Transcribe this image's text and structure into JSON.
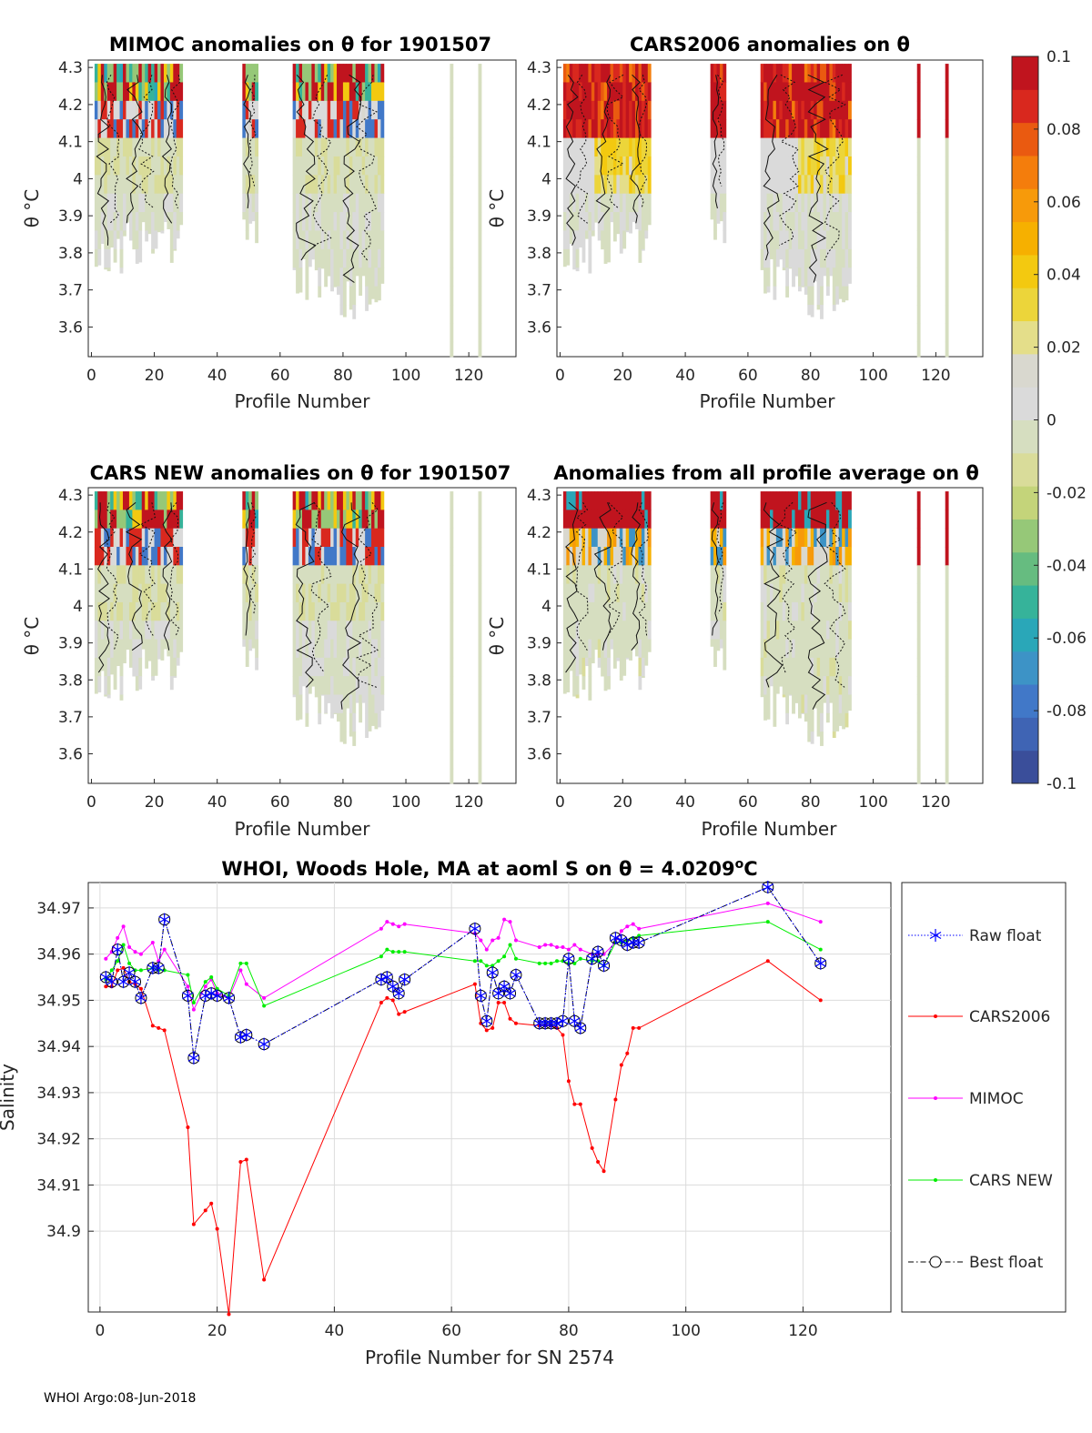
{
  "footer": "WHOI Argo:08-Jun-2018",
  "colorbar": {
    "min": -0.1,
    "max": 0.1,
    "tick_labels": [
      "0.1",
      "0.08",
      "0.06",
      "0.04",
      "0.02",
      "0",
      "-0.02",
      "-0.04",
      "-0.06",
      "-0.08",
      "-0.1"
    ],
    "colors": [
      "#3a4e9a",
      "#3f64b4",
      "#4178c8",
      "#3d93c6",
      "#2aa7b8",
      "#36b39a",
      "#66bc80",
      "#96c878",
      "#c4d47a",
      "#d9dc9a",
      "#d6dec0",
      "#dadada",
      "#d9d8cf",
      "#e4de8a",
      "#ecd53a",
      "#f3c910",
      "#f6b000",
      "#f79a0a",
      "#f47d0c",
      "#ea5a10",
      "#d9281e",
      "#c0141e"
    ]
  },
  "chart_data": [
    {
      "type": "heatmap",
      "title": "MIMOC anomalies on θ  for 1901507",
      "xlabel": "Profile Number",
      "ylabel": "θ °C",
      "xlim": [
        -1,
        135
      ],
      "ylim": [
        3.52,
        4.32
      ],
      "xticks": [
        "0",
        "20",
        "40",
        "60",
        "80",
        "100",
        "120"
      ],
      "yticks": [
        "4.3",
        "4.2",
        "4.1",
        "4",
        "3.9",
        "3.8",
        "3.7",
        "3.6"
      ],
      "profile_groups": [
        {
          "x_range": [
            1,
            10
          ],
          "theta_min": 3.72
        },
        {
          "x_range": [
            10,
            22
          ],
          "theta_min": 3.77
        },
        {
          "x_range": [
            22,
            29
          ],
          "theta_min": 3.77
        },
        {
          "x_range": [
            48,
            53
          ],
          "theta_min": 3.82
        },
        {
          "x_range": [
            64,
            78
          ],
          "theta_min": 3.67
        },
        {
          "x_range": [
            78,
            93
          ],
          "theta_min": 3.62
        },
        {
          "x_range": [
            114,
            115
          ],
          "theta_min": 3.52
        },
        {
          "x_range": [
            123,
            124
          ],
          "theta_min": 3.52
        }
      ]
    },
    {
      "type": "heatmap",
      "title": "CARS2006 anomalies on θ",
      "xlabel": "Profile Number",
      "ylabel": "θ °C",
      "xlim": [
        -1,
        135
      ],
      "ylim": [
        3.52,
        4.32
      ],
      "xticks": [
        "0",
        "20",
        "40",
        "60",
        "80",
        "100",
        "120"
      ],
      "yticks": [
        "4.3",
        "4.2",
        "4.1",
        "4",
        "3.9",
        "3.8",
        "3.7",
        "3.6"
      ],
      "profile_groups": [
        {
          "x_range": [
            1,
            10
          ],
          "theta_min": 3.72
        },
        {
          "x_range": [
            10,
            22
          ],
          "theta_min": 3.77
        },
        {
          "x_range": [
            22,
            29
          ],
          "theta_min": 3.77
        },
        {
          "x_range": [
            48,
            53
          ],
          "theta_min": 3.82
        },
        {
          "x_range": [
            64,
            78
          ],
          "theta_min": 3.67
        },
        {
          "x_range": [
            78,
            93
          ],
          "theta_min": 3.62
        },
        {
          "x_range": [
            114,
            115
          ],
          "theta_min": 3.52
        },
        {
          "x_range": [
            123,
            124
          ],
          "theta_min": 3.52
        }
      ]
    },
    {
      "type": "heatmap",
      "title": "CARS NEW anomalies on θ for 1901507",
      "xlabel": "Profile Number",
      "ylabel": "θ °C",
      "xlim": [
        -1,
        135
      ],
      "ylim": [
        3.52,
        4.32
      ],
      "xticks": [
        "0",
        "20",
        "40",
        "60",
        "80",
        "100",
        "120"
      ],
      "yticks": [
        "4.3",
        "4.2",
        "4.1",
        "4",
        "3.9",
        "3.8",
        "3.7",
        "3.6"
      ],
      "profile_groups": [
        {
          "x_range": [
            1,
            10
          ],
          "theta_min": 3.72
        },
        {
          "x_range": [
            10,
            22
          ],
          "theta_min": 3.77
        },
        {
          "x_range": [
            22,
            29
          ],
          "theta_min": 3.77
        },
        {
          "x_range": [
            48,
            53
          ],
          "theta_min": 3.82
        },
        {
          "x_range": [
            64,
            78
          ],
          "theta_min": 3.67
        },
        {
          "x_range": [
            78,
            93
          ],
          "theta_min": 3.62
        },
        {
          "x_range": [
            114,
            115
          ],
          "theta_min": 3.52
        },
        {
          "x_range": [
            123,
            124
          ],
          "theta_min": 3.52
        }
      ]
    },
    {
      "type": "heatmap",
      "title": "Anomalies from all profile average on θ",
      "xlabel": "Profile Number",
      "ylabel": "θ °C",
      "xlim": [
        -1,
        135
      ],
      "ylim": [
        3.52,
        4.32
      ],
      "xticks": [
        "0",
        "20",
        "40",
        "60",
        "80",
        "100",
        "120"
      ],
      "yticks": [
        "4.3",
        "4.2",
        "4.1",
        "4",
        "3.9",
        "3.8",
        "3.7",
        "3.6"
      ],
      "profile_groups": [
        {
          "x_range": [
            1,
            10
          ],
          "theta_min": 3.72
        },
        {
          "x_range": [
            10,
            22
          ],
          "theta_min": 3.77
        },
        {
          "x_range": [
            22,
            29
          ],
          "theta_min": 3.77
        },
        {
          "x_range": [
            48,
            53
          ],
          "theta_min": 3.82
        },
        {
          "x_range": [
            64,
            78
          ],
          "theta_min": 3.67
        },
        {
          "x_range": [
            78,
            93
          ],
          "theta_min": 3.62
        },
        {
          "x_range": [
            114,
            115
          ],
          "theta_min": 3.52
        },
        {
          "x_range": [
            123,
            124
          ],
          "theta_min": 3.52
        }
      ]
    },
    {
      "type": "line",
      "title": "WHOI, Woods Hole, MA at aoml S on θ = 4.0209°C",
      "title_prefix": "WHOI, Woods Hole, MA at aoml S on θ = 4.0209",
      "title_sup": "o",
      "title_suffix": "C",
      "xlabel": "Profile Number for SN 2574",
      "ylabel": "Salinity",
      "xlim": [
        -2,
        135
      ],
      "ylim": [
        34.8825,
        34.9755
      ],
      "xticks": [
        "0",
        "20",
        "40",
        "60",
        "80",
        "100",
        "120"
      ],
      "yticks": [
        "34.97",
        "34.96",
        "34.95",
        "34.94",
        "34.93",
        "34.92",
        "34.91",
        "34.9"
      ],
      "x": [
        1,
        2,
        3,
        4,
        5,
        6,
        7,
        9,
        10,
        11,
        15,
        16,
        18,
        19,
        20,
        22,
        24,
        25,
        28,
        48,
        49,
        50,
        51,
        52,
        64,
        65,
        66,
        67,
        68,
        69,
        70,
        71,
        75,
        76,
        77,
        78,
        79,
        80,
        81,
        82,
        84,
        85,
        86,
        88,
        89,
        90,
        91,
        92,
        114,
        123
      ],
      "series": [
        {
          "name": "Raw float",
          "color": "#0000ff",
          "marker": "asterisk",
          "values": [
            34.955,
            34.954,
            34.961,
            34.954,
            34.956,
            34.954,
            34.9505,
            34.957,
            34.957,
            34.9675,
            34.951,
            34.9375,
            34.951,
            34.9515,
            34.951,
            34.9505,
            34.942,
            34.9425,
            34.9405,
            34.9545,
            34.955,
            34.953,
            34.9515,
            34.9545,
            34.9655,
            34.951,
            34.9455,
            34.956,
            34.9515,
            34.953,
            34.9515,
            34.9555,
            34.945,
            34.945,
            34.945,
            34.945,
            34.9455,
            34.959,
            34.9455,
            34.944,
            34.959,
            34.9605,
            34.9575,
            34.9635,
            34.963,
            34.962,
            34.9625,
            34.9625,
            34.9745,
            34.958
          ]
        },
        {
          "name": "CARS2006",
          "color": "#ff0000",
          "marker": "dot",
          "values": [
            34.953,
            34.953,
            34.9565,
            34.957,
            34.954,
            34.9535,
            34.9525,
            34.9445,
            34.944,
            34.9435,
            34.9225,
            34.9015,
            34.9045,
            34.906,
            34.9005,
            34.882,
            34.915,
            34.9155,
            34.8895,
            34.9495,
            34.9505,
            34.95,
            34.947,
            34.9475,
            34.9535,
            34.945,
            34.9435,
            34.944,
            34.9495,
            34.9495,
            34.946,
            34.945,
            34.9445,
            34.9445,
            34.9445,
            34.944,
            34.9425,
            34.9325,
            34.9275,
            34.9275,
            34.918,
            34.915,
            34.913,
            34.9285,
            34.936,
            34.9385,
            34.944,
            34.944,
            34.9585,
            34.95
          ]
        },
        {
          "name": "MIMOC",
          "color": "#ff00ff",
          "marker": "dot",
          "values": [
            34.959,
            34.9605,
            34.9635,
            34.966,
            34.9615,
            34.9605,
            34.96,
            34.9625,
            34.9585,
            34.961,
            34.953,
            34.948,
            34.953,
            34.9545,
            34.9515,
            34.9505,
            34.9565,
            34.9535,
            34.9505,
            34.9655,
            34.967,
            34.9665,
            34.966,
            34.9665,
            34.9645,
            34.963,
            34.961,
            34.963,
            34.9635,
            34.9675,
            34.967,
            34.963,
            34.9615,
            34.962,
            34.962,
            34.9615,
            34.9615,
            34.961,
            34.962,
            34.961,
            34.96,
            34.96,
            34.96,
            34.9625,
            34.965,
            34.966,
            34.9665,
            34.9655,
            34.971,
            34.967
          ]
        },
        {
          "name": "CARS NEW",
          "color": "#00ee00",
          "marker": "dot",
          "values": [
            34.9545,
            34.9565,
            34.9585,
            34.962,
            34.958,
            34.9565,
            34.9565,
            34.957,
            34.9565,
            34.9565,
            34.9555,
            34.9495,
            34.954,
            34.955,
            34.9525,
            34.951,
            34.958,
            34.958,
            34.9488,
            34.9595,
            34.961,
            34.9605,
            34.9605,
            34.9605,
            34.9585,
            34.9585,
            34.9575,
            34.9575,
            34.9585,
            34.9595,
            34.962,
            34.959,
            34.958,
            34.958,
            34.958,
            34.9585,
            34.9585,
            34.958,
            34.958,
            34.959,
            34.9585,
            34.9585,
            34.9575,
            34.9625,
            34.9625,
            34.963,
            34.9635,
            34.964,
            34.967,
            34.961
          ]
        },
        {
          "name": "Best float",
          "color": "#000000",
          "marker": "circle",
          "values": [
            34.955,
            34.954,
            34.961,
            34.954,
            34.956,
            34.954,
            34.9505,
            34.957,
            34.957,
            34.9675,
            34.951,
            34.9375,
            34.951,
            34.9515,
            34.951,
            34.9505,
            34.942,
            34.9425,
            34.9405,
            34.9545,
            34.955,
            34.953,
            34.9515,
            34.9545,
            34.9655,
            34.951,
            34.9455,
            34.956,
            34.9515,
            34.953,
            34.9515,
            34.9555,
            34.945,
            34.945,
            34.945,
            34.945,
            34.9455,
            34.959,
            34.9455,
            34.944,
            34.959,
            34.9605,
            34.9575,
            34.9635,
            34.963,
            34.962,
            34.9625,
            34.9625,
            34.9745,
            34.958
          ]
        }
      ]
    }
  ]
}
